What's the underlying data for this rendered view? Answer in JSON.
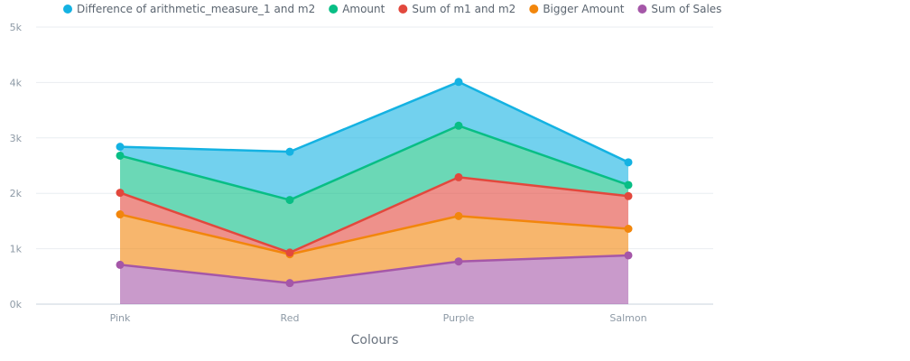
{
  "chart_data": {
    "type": "area",
    "stacked": true,
    "categories": [
      "Pink",
      "Red",
      "Purple",
      "Salmon"
    ],
    "xlabel": "Colours",
    "ylabel": "",
    "ylim": [
      0,
      5000
    ],
    "yticks": [
      0,
      1000,
      2000,
      3000,
      4000,
      5000
    ],
    "ytick_labels": [
      "0k",
      "1k",
      "2k",
      "3k",
      "4k",
      "5k"
    ],
    "grid": true,
    "legend_position": "top",
    "series": [
      {
        "name": "Sum of Sales",
        "color": "#a557a8",
        "values": [
          710,
          380,
          770,
          880
        ]
      },
      {
        "name": "Bigger Amount",
        "color": "#f2860c",
        "values": [
          910,
          520,
          820,
          480
        ]
      },
      {
        "name": "Sum of m1 and m2",
        "color": "#e2483d",
        "values": [
          390,
          30,
          700,
          590
        ]
      },
      {
        "name": "Amount",
        "color": "#08be85",
        "values": [
          670,
          950,
          930,
          200
        ]
      },
      {
        "name": "Difference of arithmetic_measure_1 and m2",
        "color": "#14b2e2",
        "values": [
          160,
          870,
          790,
          410
        ]
      }
    ],
    "legend_order": [
      "Difference of arithmetic_measure_1 and m2",
      "Amount",
      "Sum of m1 and m2",
      "Bigger Amount",
      "Sum of Sales"
    ]
  }
}
